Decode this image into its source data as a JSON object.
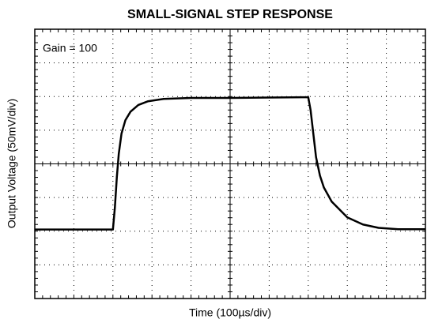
{
  "chart_data": {
    "type": "line",
    "title": "SMALL-SIGNAL STEP RESPONSE",
    "xlabel": "Time (100µs/div)",
    "ylabel": "Output Voltage (50mV/div)",
    "annotation": "Gain = 100",
    "xlim": [
      0,
      10
    ],
    "ylim": [
      -4,
      4
    ],
    "xticks": [
      0,
      1,
      2,
      3,
      4,
      5,
      6,
      7,
      8,
      9,
      10
    ],
    "yticks": [
      -4,
      -3,
      -2,
      -1,
      0,
      1,
      2,
      3,
      4
    ],
    "grid": true,
    "x": [
      0,
      2.0,
      2.05,
      2.1,
      2.15,
      2.22,
      2.32,
      2.45,
      2.65,
      2.9,
      3.3,
      4.0,
      5.0,
      6.0,
      7.0,
      7.06,
      7.12,
      7.2,
      7.3,
      7.4,
      7.6,
      8.0,
      8.4,
      8.8,
      9.3,
      10
    ],
    "series": [
      {
        "color": "#000000",
        "values": [
          -1.95,
          -1.95,
          -1.3,
          -0.4,
          0.3,
          0.9,
          1.3,
          1.55,
          1.75,
          1.86,
          1.93,
          1.96,
          1.96,
          1.97,
          1.98,
          1.6,
          1.0,
          0.2,
          -0.35,
          -0.7,
          -1.12,
          -1.59,
          -1.8,
          -1.9,
          -1.94,
          -1.94
        ]
      }
    ]
  }
}
